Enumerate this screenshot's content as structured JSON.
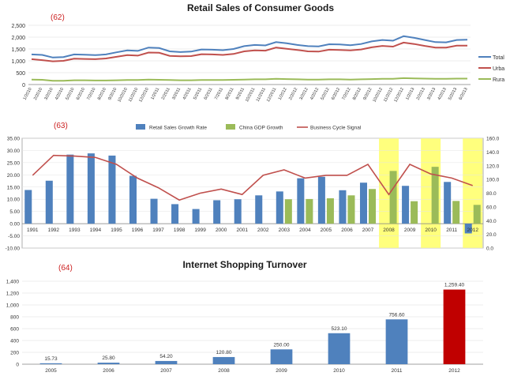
{
  "chart_data": [
    {
      "type": "line",
      "id": "62",
      "marker": "(62)",
      "title": "Retail Sales of Consumer Goods",
      "x": [
        "1/2010",
        "2/2010",
        "3/2010",
        "4/2010",
        "5/2010",
        "6/2010",
        "7/2010",
        "8/2010",
        "9/2010",
        "10/2010",
        "11/2010",
        "12/2010",
        "1/2011",
        "2/2011",
        "3/2011",
        "4/2011",
        "5/2011",
        "6/2011",
        "7/2011",
        "8/2011",
        "9/2011",
        "10/2011",
        "11/2011",
        "12/2011",
        "1/2012",
        "2/2012",
        "3/2012",
        "4/2012",
        "5/2012",
        "6/2012",
        "7/2012",
        "8/2012",
        "9/2012",
        "10/2012",
        "11/2012",
        "12/2012",
        "1/2013",
        "2/2013",
        "3/2013",
        "4/2013",
        "5/2013",
        "6/2013"
      ],
      "yticks": [
        "0",
        "500",
        "1,000",
        "1,500",
        "2,000",
        "2,500"
      ],
      "ylim": [
        0,
        2500
      ],
      "grid": true,
      "legend": "right",
      "series": [
        {
          "name": "Total",
          "color": "#4f81bd",
          "values": [
            1270,
            1250,
            1140,
            1160,
            1270,
            1260,
            1240,
            1270,
            1360,
            1440,
            1420,
            1560,
            1540,
            1400,
            1370,
            1390,
            1480,
            1470,
            1450,
            1500,
            1620,
            1670,
            1650,
            1790,
            1740,
            1670,
            1620,
            1610,
            1700,
            1690,
            1660,
            1710,
            1820,
            1880,
            1850,
            2040,
            1970,
            1880,
            1790,
            1780,
            1880,
            1890
          ]
        },
        {
          "name": "Urba",
          "color": "#c0504d",
          "values": [
            1070,
            1030,
            980,
            1000,
            1090,
            1080,
            1070,
            1100,
            1170,
            1240,
            1220,
            1350,
            1340,
            1210,
            1190,
            1200,
            1280,
            1270,
            1250,
            1290,
            1400,
            1440,
            1430,
            1560,
            1510,
            1460,
            1400,
            1390,
            1470,
            1460,
            1440,
            1480,
            1570,
            1630,
            1600,
            1770,
            1710,
            1630,
            1560,
            1560,
            1640,
            1640
          ]
        },
        {
          "name": "Rura",
          "color": "#9bbb59",
          "values": [
            210,
            200,
            160,
            160,
            180,
            180,
            170,
            170,
            180,
            190,
            190,
            210,
            200,
            190,
            180,
            180,
            190,
            190,
            190,
            200,
            210,
            220,
            220,
            240,
            230,
            220,
            210,
            210,
            220,
            220,
            210,
            220,
            230,
            240,
            240,
            270,
            260,
            250,
            240,
            240,
            250,
            250
          ]
        }
      ]
    },
    {
      "type": "bar",
      "id": "63",
      "marker": "(63)",
      "categories": [
        "1991",
        "1992",
        "1993",
        "1994",
        "1995",
        "1996",
        "1997",
        "1998",
        "1999",
        "2000",
        "2001",
        "2002",
        "2003",
        "2004",
        "2005",
        "2006",
        "2007",
        "2008",
        "2009",
        "2010",
        "2011",
        "2012"
      ],
      "yticks_left": [
        "-10.00",
        "-5.00",
        "0.00",
        "5.00",
        "10.00",
        "15.00",
        "20.00",
        "25.00",
        "30.00",
        "35.00"
      ],
      "ylim_left": [
        -10,
        35
      ],
      "yticks_right": [
        "0.0",
        "20.0",
        "40.0",
        "60.0",
        "80.0",
        "100.0",
        "120.0",
        "140.0",
        "160.0"
      ],
      "ylim_right": [
        0,
        160
      ],
      "legend": "top",
      "highlight_years": [
        "2008",
        "2010",
        "2012"
      ],
      "highlight_color": "#ffff66",
      "series": [
        {
          "name": "Retail Sales Growth Rate",
          "kind": "bar",
          "axis": "left",
          "color": "#4f81bd",
          "values": [
            13.8,
            17.6,
            28.3,
            28.8,
            27.9,
            19.6,
            10.2,
            8.0,
            6.0,
            9.6,
            10.0,
            11.6,
            13.2,
            18.6,
            19.2,
            13.7,
            16.8,
            null,
            15.5,
            null,
            17.1,
            -4.0
          ]
        },
        {
          "name": "China GDP Growth",
          "kind": "bar",
          "axis": "left",
          "color": "#9bbb59",
          "values": [
            null,
            null,
            null,
            null,
            null,
            null,
            null,
            null,
            null,
            null,
            null,
            null,
            10.0,
            10.1,
            10.4,
            11.6,
            14.2,
            21.6,
            9.2,
            23.3,
            9.3,
            7.7
          ]
        },
        {
          "name": "Business Cycle Signal",
          "kind": "line",
          "axis": "right",
          "color": "#c0504d",
          "values": [
            106,
            135,
            134,
            132,
            122,
            102,
            88,
            70,
            80,
            86,
            78,
            106,
            114,
            102,
            106,
            106,
            122,
            78,
            122,
            108,
            102,
            91
          ]
        }
      ]
    },
    {
      "type": "bar",
      "id": "64",
      "marker": "(64)",
      "title": "Internet Shopping Turnover",
      "categories": [
        "2005",
        "2006",
        "2007",
        "2008",
        "2009",
        "2010",
        "2011",
        "2012"
      ],
      "values": [
        15.73,
        25.8,
        54.2,
        120.8,
        250.0,
        523.1,
        756.6,
        1259.4
      ],
      "labels": [
        "15.73",
        "25.80",
        "54.20",
        "120.80",
        "250.00",
        "523.10",
        "756.60",
        "1,259.40"
      ],
      "yticks": [
        "0",
        "200",
        "400",
        "600",
        "800",
        "1,000",
        "1,200",
        "1,400"
      ],
      "ylim": [
        0,
        1400
      ],
      "grid": true,
      "colors": [
        "#4f81bd",
        "#4f81bd",
        "#4f81bd",
        "#4f81bd",
        "#4f81bd",
        "#4f81bd",
        "#4f81bd",
        "#c00000"
      ]
    }
  ]
}
